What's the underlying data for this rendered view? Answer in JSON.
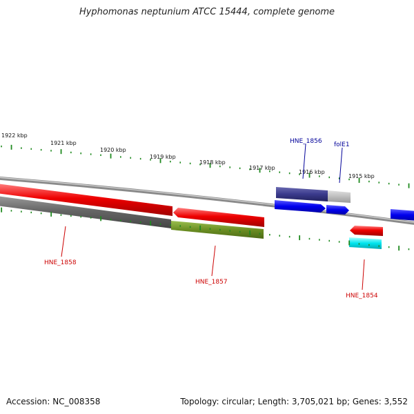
{
  "title": "Hyphomonas neptunium ATCC 15444, complete genome",
  "footer": {
    "accession": "Accession: NC_008358",
    "summary": "Topology: circular; Length: 3,705,021 bp; Genes: 3,552"
  },
  "colors": {
    "backbone": "#8a8a8a",
    "tick": "#1f8a1f",
    "forward_cds": "#0000ee",
    "forward_dark": "#3a3a8c",
    "reverse_cds": "#ee0000",
    "reverse_gray": "#666666",
    "reverse_olive": "#6b8e23",
    "reverse_cyan": "#00e5ee",
    "label_forward": "#000099",
    "label_reverse": "#cc0000"
  },
  "scale_labels": [
    "1922 kbp",
    "1921 kbp",
    "1920 kbp",
    "1919 kbp",
    "1918 kbp",
    "1917 kbp",
    "1916 kbp",
    "1915 kbp"
  ],
  "gene_labels": {
    "forward": [
      "HNE_1856",
      "folE1"
    ],
    "reverse": [
      "HNE_1858",
      "HNE_1857",
      "HNE_1854"
    ]
  }
}
